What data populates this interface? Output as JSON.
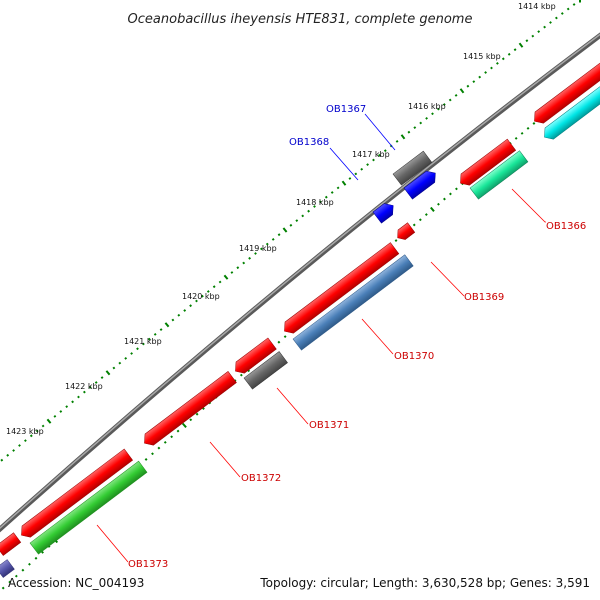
{
  "title": "Oceanobacillus iheyensis HTE831, complete genome",
  "footer": {
    "accession": "Accession: NC_004193",
    "summary": "Topology: circular; Length: 3,630,528 bp; Genes: 3,591"
  },
  "ticks": [
    {
      "label": "1414 kbp"
    },
    {
      "label": "1415 kbp"
    },
    {
      "label": "1416 kbp"
    },
    {
      "label": "1417 kbp"
    },
    {
      "label": "1418 kbp"
    },
    {
      "label": "1419 kbp"
    },
    {
      "label": "1420 kbp"
    },
    {
      "label": "1421 kbp"
    },
    {
      "label": "1422 kbp"
    },
    {
      "label": "1423 kbp"
    }
  ],
  "genes": [
    {
      "name": "OB1366",
      "color": "#cc0000"
    },
    {
      "name": "OB1367",
      "color": "#0000cc"
    },
    {
      "name": "OB1368",
      "color": "#0000cc"
    },
    {
      "name": "OB1369",
      "color": "#cc0000"
    },
    {
      "name": "OB1370",
      "color": "#cc0000"
    },
    {
      "name": "OB1371",
      "color": "#cc0000"
    },
    {
      "name": "OB1372",
      "color": "#cc0000"
    },
    {
      "name": "OB1373",
      "color": "#cc0000"
    }
  ],
  "colors": {
    "backbone": "#808080",
    "cds": "#ff0000",
    "blue_feature": "#0000ff",
    "gray_feature": "#666666",
    "steelblue_feature": "#4a7fb8",
    "green_feature": "#33cc33",
    "mint_feature": "#19e699",
    "cyan_feature": "#00e5e5",
    "purple_feature": "#5555aa",
    "tick_green": "#008000"
  }
}
